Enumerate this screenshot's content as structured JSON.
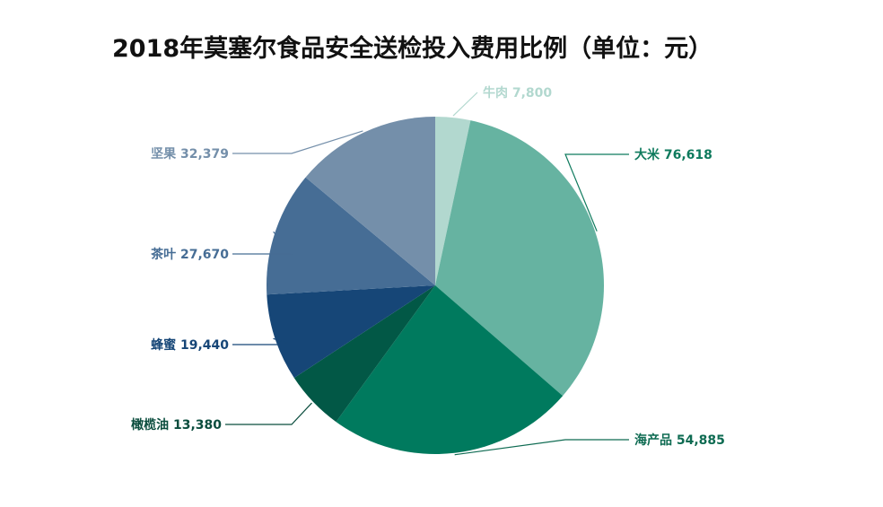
{
  "chart_data": {
    "type": "pie",
    "title": "2018年莫塞尔食品安全送检投入费用比例（单位：元）",
    "slices": [
      {
        "label": "牛肉",
        "value": 7800,
        "value_text": "7,800",
        "color": "#b2d8cf",
        "label_color": "#b2d8cf"
      },
      {
        "label": "大米",
        "value": 76618,
        "value_text": "76,618",
        "color": "#66b3a1",
        "label_color": "#0e7a5d"
      },
      {
        "label": "海产品",
        "value": 54885,
        "value_text": "54,885",
        "color": "#007a5e",
        "label_color": "#0e6b52"
      },
      {
        "label": "橄榄油",
        "value": 13380,
        "value_text": "13,380",
        "color": "#025846",
        "label_color": "#0b4d3e"
      },
      {
        "label": "蜂蜜",
        "value": 19440,
        "value_text": "19,440",
        "color": "#164677",
        "label_color": "#164677"
      },
      {
        "label": "茶叶",
        "value": 27670,
        "value_text": "27,670",
        "color": "#466d95",
        "label_color": "#466d95"
      },
      {
        "label": "坚果",
        "value": 32379,
        "value_text": "32,379",
        "color": "#748faa",
        "label_color": "#748faa"
      }
    ]
  }
}
